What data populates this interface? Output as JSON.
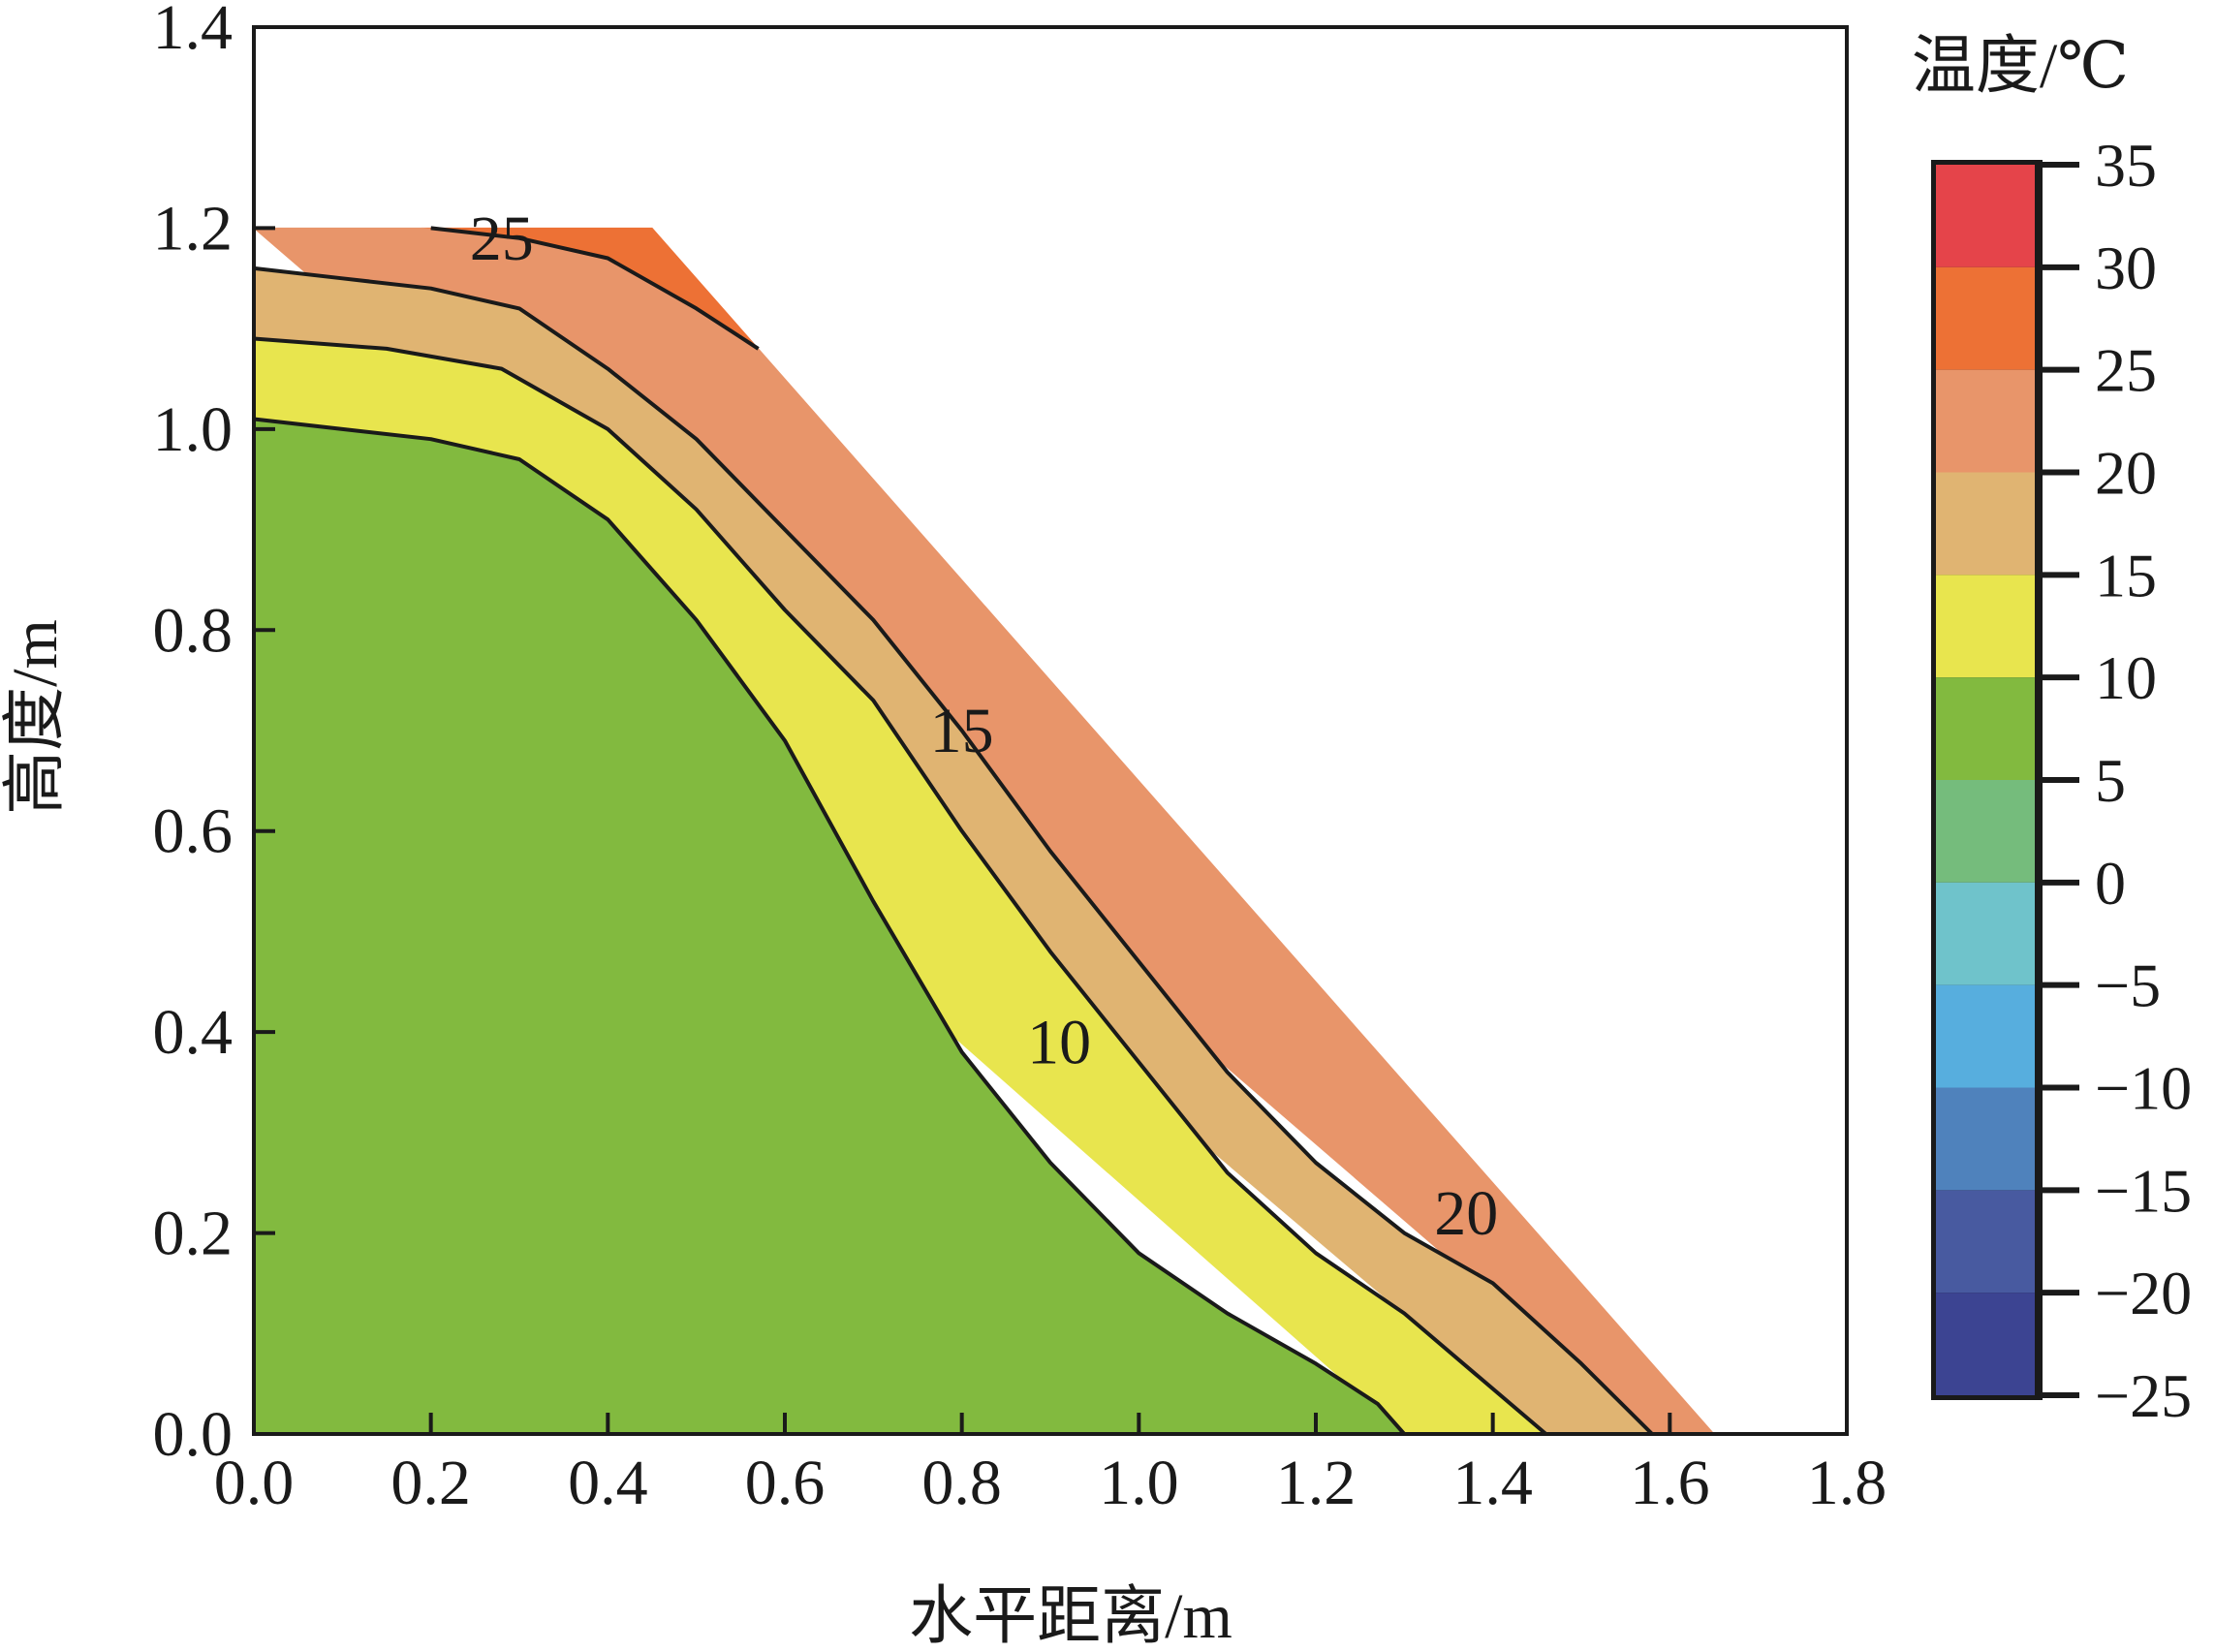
{
  "chart_data": {
    "type": "filled-contour",
    "title": "",
    "xlabel": "水平距离/m",
    "ylabel": "高度/m",
    "xlim": [
      0.0,
      1.8
    ],
    "ylim": [
      0.0,
      1.4
    ],
    "xticks": [
      "0.0",
      "0.2",
      "0.4",
      "0.6",
      "0.8",
      "1.0",
      "1.2",
      "1.4",
      "1.6",
      "1.8"
    ],
    "yticks": [
      "0.0",
      "0.2",
      "0.4",
      "0.6",
      "0.8",
      "1.0",
      "1.2",
      "1.4"
    ],
    "domain_outline": [
      [
        0.0,
        0.0
      ],
      [
        0.0,
        1.2
      ],
      [
        0.45,
        1.2
      ],
      [
        1.65,
        0.0
      ]
    ],
    "bands": [
      {
        "range": [
          25,
          30
        ],
        "color": "#ED7135",
        "polygon": [
          [
            0.19,
            1.2
          ],
          [
            0.45,
            1.2
          ],
          [
            0.57,
            1.08
          ],
          [
            0.5,
            1.12
          ],
          [
            0.4,
            1.17
          ],
          [
            0.3,
            1.19
          ],
          [
            0.2,
            1.2
          ]
        ]
      },
      {
        "range": [
          20,
          25
        ],
        "color": "#E8956A",
        "polygon": [
          [
            0.0,
            1.2
          ],
          [
            0.19,
            1.2
          ],
          [
            0.3,
            1.19
          ],
          [
            0.4,
            1.17
          ],
          [
            0.5,
            1.12
          ],
          [
            0.57,
            1.08
          ],
          [
            1.65,
            0.0
          ],
          [
            1.58,
            0.0
          ]
        ]
      },
      {
        "range": [
          15,
          20
        ],
        "color": "#E0B472",
        "polygon": [
          [
            0.0,
            1.16
          ],
          [
            0.1,
            1.15
          ],
          [
            0.2,
            1.14
          ],
          [
            0.3,
            1.12
          ],
          [
            0.4,
            1.06
          ],
          [
            0.5,
            0.99
          ],
          [
            0.6,
            0.9
          ],
          [
            0.7,
            0.81
          ],
          [
            0.8,
            0.7
          ],
          [
            0.9,
            0.58
          ],
          [
            1.0,
            0.47
          ],
          [
            1.1,
            0.36
          ],
          [
            1.2,
            0.27
          ],
          [
            1.3,
            0.2
          ],
          [
            1.4,
            0.15
          ],
          [
            1.5,
            0.07
          ],
          [
            1.58,
            0.0
          ],
          [
            1.46,
            0.0
          ],
          [
            0.0,
            1.09
          ]
        ]
      },
      {
        "range": [
          10,
          15
        ],
        "color": "#E8E54E",
        "polygon": [
          [
            0.0,
            1.09
          ],
          [
            0.15,
            1.08
          ],
          [
            0.28,
            1.06
          ],
          [
            0.4,
            1.0
          ],
          [
            0.5,
            0.92
          ],
          [
            0.6,
            0.82
          ],
          [
            0.7,
            0.73
          ],
          [
            0.8,
            0.6
          ],
          [
            0.9,
            0.48
          ],
          [
            1.0,
            0.37
          ],
          [
            1.1,
            0.26
          ],
          [
            1.2,
            0.18
          ],
          [
            1.3,
            0.12
          ],
          [
            1.38,
            0.06
          ],
          [
            1.46,
            0.0
          ],
          [
            1.3,
            0.0
          ],
          [
            0.0,
            1.01
          ]
        ]
      },
      {
        "range": [
          5,
          10
        ],
        "color": "#82BA3F",
        "polygon": [
          [
            0.0,
            1.01
          ],
          [
            0.1,
            1.0
          ],
          [
            0.2,
            0.99
          ],
          [
            0.3,
            0.97
          ],
          [
            0.4,
            0.91
          ],
          [
            0.5,
            0.81
          ],
          [
            0.6,
            0.69
          ],
          [
            0.7,
            0.53
          ],
          [
            0.8,
            0.38
          ],
          [
            0.9,
            0.27
          ],
          [
            1.0,
            0.18
          ],
          [
            1.1,
            0.12
          ],
          [
            1.2,
            0.07
          ],
          [
            1.27,
            0.03
          ],
          [
            1.3,
            0.0
          ],
          [
            0.0,
            0.0
          ]
        ]
      }
    ],
    "contours": [
      {
        "level": 25,
        "label": "25",
        "label_pos": [
          0.28,
          1.19
        ],
        "points": [
          [
            0.2,
            1.2
          ],
          [
            0.3,
            1.19
          ],
          [
            0.4,
            1.17
          ],
          [
            0.5,
            1.12
          ],
          [
            0.57,
            1.08
          ]
        ]
      },
      {
        "level": 20,
        "label": "20",
        "label_pos": [
          1.37,
          0.22
        ],
        "points": [
          [
            0.0,
            1.16
          ],
          [
            0.1,
            1.15
          ],
          [
            0.2,
            1.14
          ],
          [
            0.3,
            1.12
          ],
          [
            0.4,
            1.06
          ],
          [
            0.5,
            0.99
          ],
          [
            0.6,
            0.9
          ],
          [
            0.7,
            0.81
          ],
          [
            0.8,
            0.7
          ],
          [
            0.9,
            0.58
          ],
          [
            1.0,
            0.47
          ],
          [
            1.1,
            0.36
          ],
          [
            1.2,
            0.27
          ],
          [
            1.3,
            0.2
          ],
          [
            1.4,
            0.15
          ],
          [
            1.5,
            0.07
          ],
          [
            1.58,
            0.0
          ]
        ]
      },
      {
        "level": 15,
        "label": "15",
        "label_pos": [
          0.8,
          0.7
        ],
        "points": [
          [
            0.0,
            1.09
          ],
          [
            0.15,
            1.08
          ],
          [
            0.28,
            1.06
          ],
          [
            0.4,
            1.0
          ],
          [
            0.5,
            0.92
          ],
          [
            0.6,
            0.82
          ],
          [
            0.7,
            0.73
          ],
          [
            0.8,
            0.6
          ],
          [
            0.9,
            0.48
          ],
          [
            1.0,
            0.37
          ],
          [
            1.1,
            0.26
          ],
          [
            1.2,
            0.18
          ],
          [
            1.3,
            0.12
          ],
          [
            1.38,
            0.06
          ],
          [
            1.46,
            0.0
          ]
        ]
      },
      {
        "level": 10,
        "label": "10",
        "label_pos": [
          0.91,
          0.39
        ],
        "points": [
          [
            0.0,
            1.01
          ],
          [
            0.1,
            1.0
          ],
          [
            0.2,
            0.99
          ],
          [
            0.3,
            0.97
          ],
          [
            0.4,
            0.91
          ],
          [
            0.5,
            0.81
          ],
          [
            0.6,
            0.69
          ],
          [
            0.7,
            0.53
          ],
          [
            0.8,
            0.38
          ],
          [
            0.9,
            0.27
          ],
          [
            1.0,
            0.18
          ],
          [
            1.1,
            0.12
          ],
          [
            1.2,
            0.07
          ],
          [
            1.27,
            0.03
          ],
          [
            1.3,
            0.0
          ]
        ]
      }
    ],
    "colorbar": {
      "title": "温度/℃",
      "min": -25,
      "max": 35,
      "tick_labels": [
        "35",
        "30",
        "25",
        "20",
        "15",
        "10",
        "5",
        "0",
        "−5",
        "−10",
        "−15",
        "−20",
        "−25"
      ],
      "segments": [
        {
          "from": 30,
          "to": 35,
          "color": "#E5444A"
        },
        {
          "from": 25,
          "to": 30,
          "color": "#ED7135"
        },
        {
          "from": 20,
          "to": 25,
          "color": "#E8956A"
        },
        {
          "from": 15,
          "to": 20,
          "color": "#E0B472"
        },
        {
          "from": 10,
          "to": 15,
          "color": "#E8E54E"
        },
        {
          "from": 5,
          "to": 10,
          "color": "#82BA3F"
        },
        {
          "from": 0,
          "to": 5,
          "color": "#75BC7C"
        },
        {
          "from": -5,
          "to": 0,
          "color": "#6FC3CB"
        },
        {
          "from": -10,
          "to": -5,
          "color": "#57AEDE"
        },
        {
          "from": -15,
          "to": -10,
          "color": "#4F82BC"
        },
        {
          "from": -20,
          "to": -15,
          "color": "#485AA0"
        },
        {
          "from": -25,
          "to": -20,
          "color": "#3C4492"
        }
      ]
    }
  }
}
